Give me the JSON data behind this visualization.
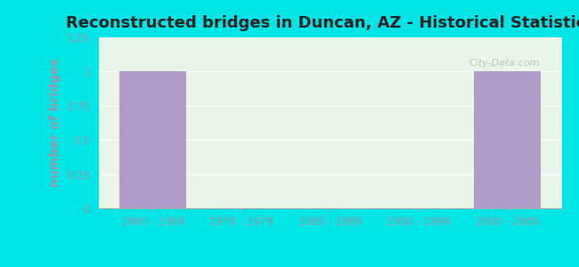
{
  "title": "Reconstructed bridges in Duncan, AZ - Historical Statistics",
  "categories": [
    "1960 - 1969",
    "1970 - 1979",
    "1980 - 1989",
    "1990 - 1999",
    "2000 - 2009"
  ],
  "values": [
    1,
    0,
    0,
    0,
    1
  ],
  "bar_color": "#b09cc8",
  "bar_edge_color": "#b09cc8",
  "ylabel": "number of bridges",
  "ylim": [
    0,
    1.25
  ],
  "yticks": [
    0,
    0.25,
    0.5,
    0.75,
    1,
    1.25
  ],
  "ytick_labels": [
    "0",
    "0.25",
    "0.5",
    "0.75",
    "1",
    "1.25"
  ],
  "background_outer": "#00e5e5",
  "background_plot_top": "#e8f5e8",
  "background_plot_bottom": "#f0f5e0",
  "tick_color": "#9999aa",
  "ylabel_color": "#00e5e5",
  "title_fontsize": 13,
  "axis_label_fontsize": 10,
  "tick_fontsize": 8.5,
  "watermark_text": "City-Data.com"
}
